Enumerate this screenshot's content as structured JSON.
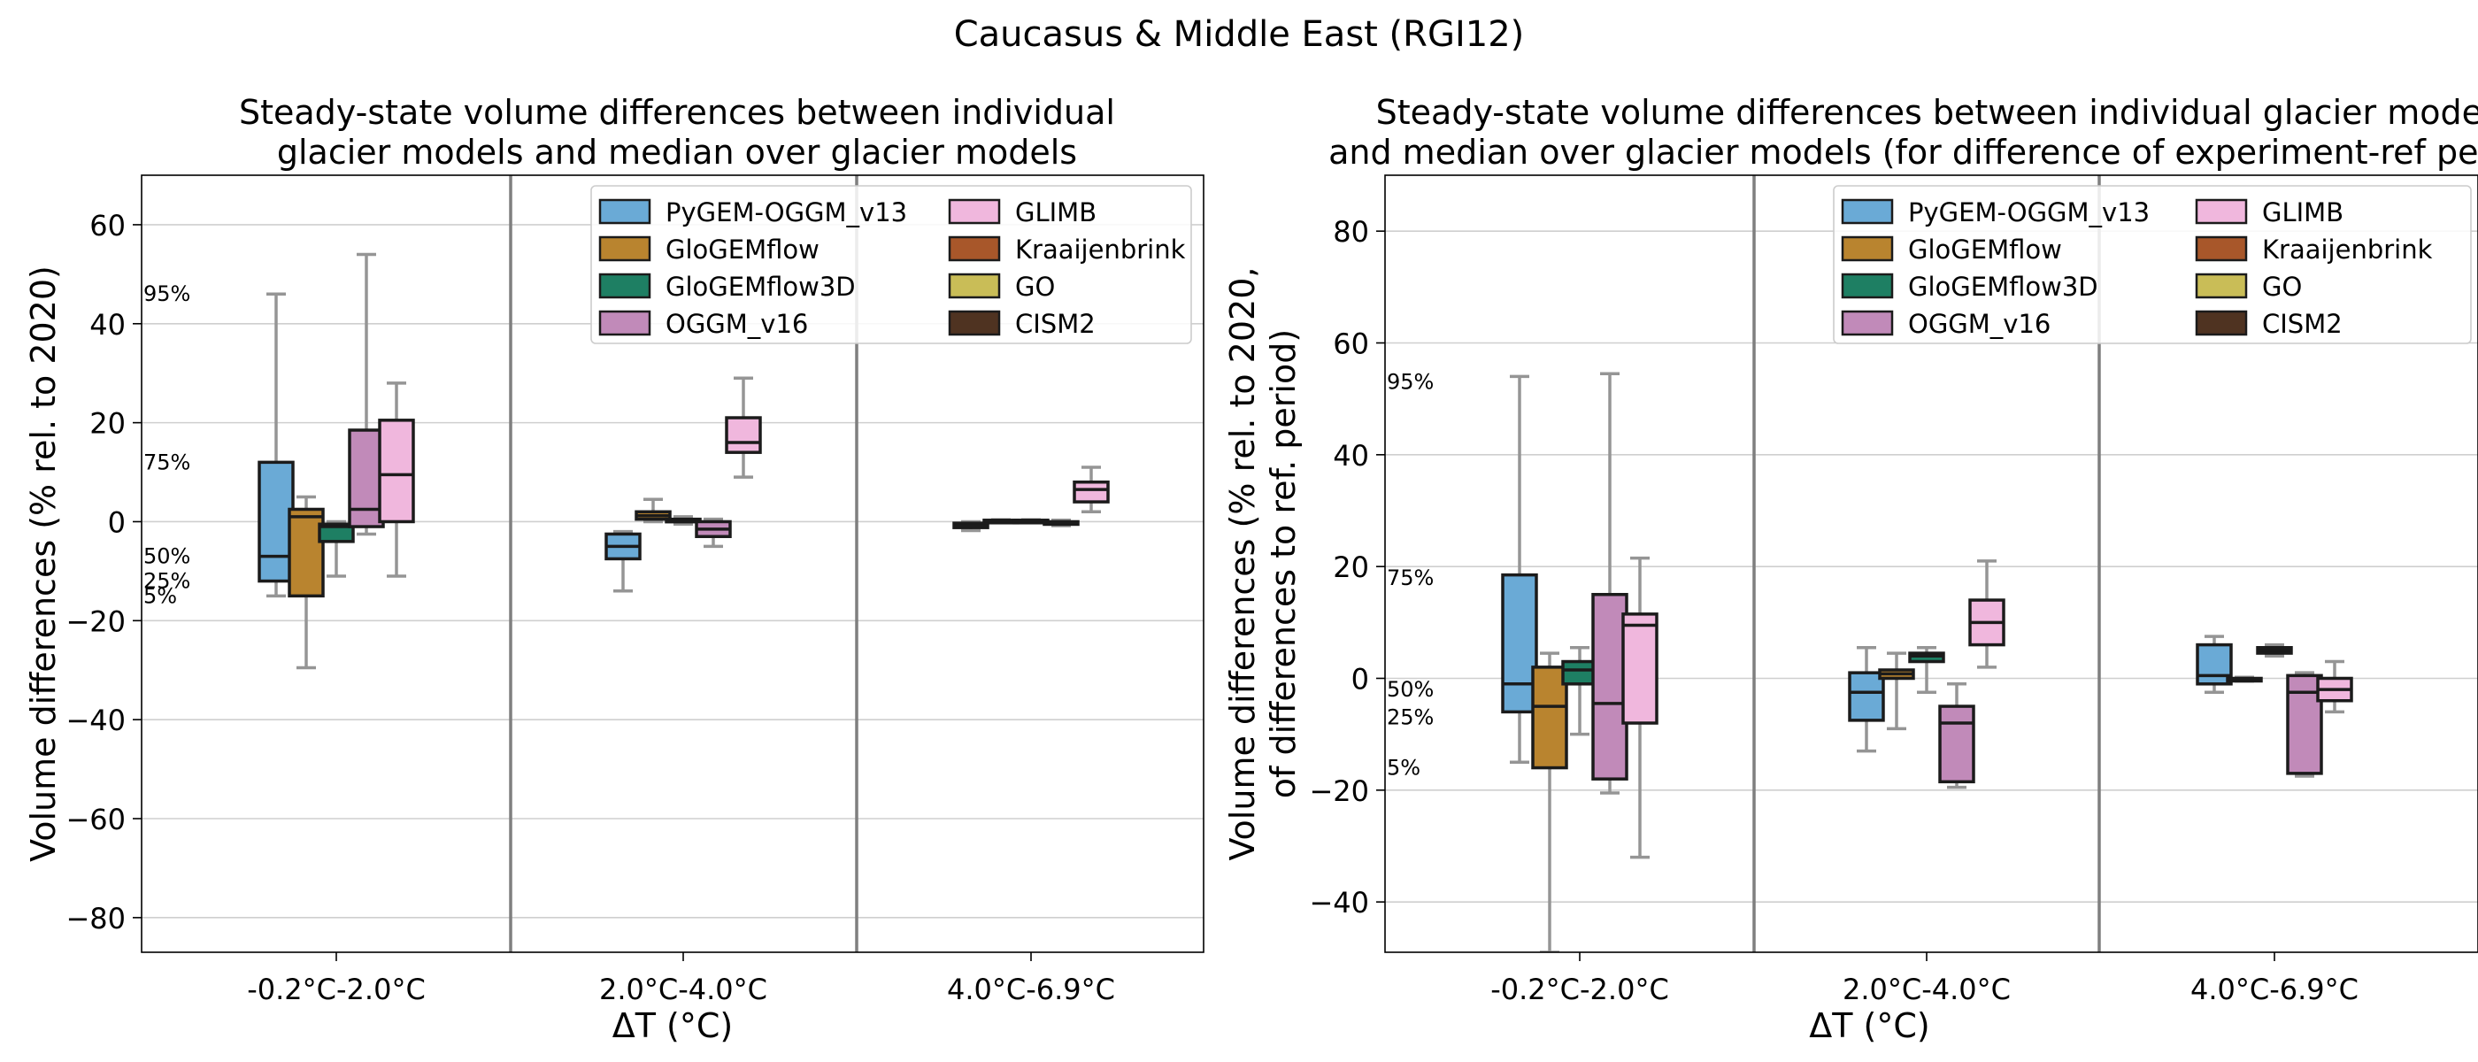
{
  "figure_title": "Caucasus & Middle East (RGI12)",
  "colors": {
    "PyGEM-OGGM_v13": "#6aaad6",
    "GloGEMflow": "#b9842f",
    "GloGEMflow3D": "#1e7f63",
    "OGGM_v16": "#c18ab9",
    "GLIMB": "#f0b7dd",
    "Kraaijenbrink": "#a8572a",
    "GO": "#c9bd57",
    "CISM2": "#4f3321"
  },
  "chart_data": [
    {
      "type": "box",
      "title": [
        "Steady-state volume differences between individual",
        "glacier models and median over glacier models"
      ],
      "xlabel": "ΔT (°C)",
      "ylabel": [
        "Volume differences (% rel. to 2020)"
      ],
      "ylim": [
        -87,
        70
      ],
      "yticks": [
        60,
        40,
        20,
        0,
        -20,
        -40,
        -60,
        -80
      ],
      "grid": true,
      "legend_position": "top-right",
      "legend_columns": 2,
      "legend": [
        "PyGEM-OGGM_v13",
        "GloGEMflow",
        "GloGEMflow3D",
        "OGGM_v16",
        "GLIMB",
        "Kraaijenbrink",
        "GO",
        "CISM2"
      ],
      "groups": [
        "-0.2°C-2.0°C",
        "2.0°C-4.0°C",
        "4.0°C-6.9°C"
      ],
      "percentile_labels": [
        {
          "label": "95%",
          "value": 46
        },
        {
          "label": "75%",
          "value": 12
        },
        {
          "label": "50%",
          "value": -7
        },
        {
          "label": "25%",
          "value": -12
        },
        {
          "label": "5%",
          "value": -15
        }
      ],
      "boxes": [
        {
          "group": 0,
          "model": "PyGEM-OGGM_v13",
          "p5": -15,
          "p25": -12,
          "p50": -7,
          "p75": 12,
          "p95": 46
        },
        {
          "group": 0,
          "model": "GloGEMflow",
          "p5": -29.5,
          "p25": -15,
          "p50": 1,
          "p75": 2.5,
          "p95": 5
        },
        {
          "group": 0,
          "model": "GloGEMflow3D",
          "p5": -11,
          "p25": -4,
          "p50": -1,
          "p75": -0.5,
          "p95": 0
        },
        {
          "group": 0,
          "model": "OGGM_v16",
          "p5": -2.5,
          "p25": -1,
          "p50": 2.5,
          "p75": 18.5,
          "p95": 54
        },
        {
          "group": 0,
          "model": "GLIMB",
          "p5": -11,
          "p25": 0,
          "p50": 9.5,
          "p75": 20.5,
          "p95": 28
        },
        {
          "group": 1,
          "model": "PyGEM-OGGM_v13",
          "p5": -14,
          "p25": -7.5,
          "p50": -5,
          "p75": -2.5,
          "p95": -2
        },
        {
          "group": 1,
          "model": "GloGEMflow",
          "p5": 0,
          "p25": 0.5,
          "p50": 1.2,
          "p75": 2,
          "p95": 4.5
        },
        {
          "group": 1,
          "model": "GloGEMflow3D",
          "p5": -0.5,
          "p25": 0,
          "p50": 0.2,
          "p75": 0.5,
          "p95": 1
        },
        {
          "group": 1,
          "model": "OGGM_v16",
          "p5": -5,
          "p25": -3,
          "p50": -1.5,
          "p75": 0,
          "p95": 0.5
        },
        {
          "group": 1,
          "model": "GLIMB",
          "p5": 9,
          "p25": 14,
          "p50": 16,
          "p75": 21,
          "p95": 29
        },
        {
          "group": 2,
          "model": "PyGEM-OGGM_v13",
          "p5": -1.8,
          "p25": -1.2,
          "p50": -0.8,
          "p75": -0.3,
          "p95": 0
        },
        {
          "group": 2,
          "model": "GloGEMflow",
          "p5": 0,
          "p25": 0.1,
          "p50": 0.2,
          "p75": 0.3,
          "p95": 0.4
        },
        {
          "group": 2,
          "model": "GloGEMflow3D",
          "p5": 0,
          "p25": 0.1,
          "p50": 0.2,
          "p75": 0.3,
          "p95": 0.4
        },
        {
          "group": 2,
          "model": "OGGM_v16",
          "p5": -0.8,
          "p25": -0.5,
          "p50": -0.2,
          "p75": 0,
          "p95": 0.3
        },
        {
          "group": 2,
          "model": "GLIMB",
          "p5": 2,
          "p25": 4,
          "p50": 6.5,
          "p75": 8,
          "p95": 11
        }
      ]
    },
    {
      "type": "box",
      "title": [
        "Steady-state volume differences between individual glacier models",
        "and median over glacier models (for difference of experiment-ref period)"
      ],
      "xlabel": "ΔT (°C)",
      "ylabel": [
        "Volume differences (% rel. to 2020,",
        "of differences to ref. period)"
      ],
      "ylim": [
        -49,
        90
      ],
      "yticks": [
        80,
        60,
        40,
        20,
        0,
        -20,
        -40
      ],
      "grid": true,
      "legend_position": "top-right",
      "legend_columns": 2,
      "legend": [
        "PyGEM-OGGM_v13",
        "GloGEMflow",
        "GloGEMflow3D",
        "OGGM_v16",
        "GLIMB",
        "Kraaijenbrink",
        "GO",
        "CISM2"
      ],
      "groups": [
        "-0.2°C-2.0°C",
        "2.0°C-4.0°C",
        "4.0°C-6.9°C"
      ],
      "percentile_labels": [
        {
          "label": "95%",
          "value": 53
        },
        {
          "label": "75%",
          "value": 18
        },
        {
          "label": "50%",
          "value": -2
        },
        {
          "label": "25%",
          "value": -7
        },
        {
          "label": "5%",
          "value": -16
        }
      ],
      "boxes": [
        {
          "group": 0,
          "model": "PyGEM-OGGM_v13",
          "p5": -15,
          "p25": -6,
          "p50": -1,
          "p75": 18.5,
          "p95": 54
        },
        {
          "group": 0,
          "model": "GloGEMflow",
          "p5": -49,
          "p25": -16,
          "p50": -5,
          "p75": 2,
          "p95": 4.5
        },
        {
          "group": 0,
          "model": "GloGEMflow3D",
          "p5": -10,
          "p25": -1,
          "p50": 1.5,
          "p75": 3,
          "p95": 5.5
        },
        {
          "group": 0,
          "model": "OGGM_v16",
          "p5": -20.5,
          "p25": -18,
          "p50": -4.5,
          "p75": 15,
          "p95": 54.5
        },
        {
          "group": 0,
          "model": "GLIMB",
          "p5": -32,
          "p25": -8,
          "p50": 9.5,
          "p75": 11.5,
          "p95": 21.5
        },
        {
          "group": 1,
          "model": "PyGEM-OGGM_v13",
          "p5": -13,
          "p25": -7.5,
          "p50": -2.5,
          "p75": 1,
          "p95": 5.5
        },
        {
          "group": 1,
          "model": "GloGEMflow",
          "p5": -9,
          "p25": 0,
          "p50": 0.8,
          "p75": 1.5,
          "p95": 4.5
        },
        {
          "group": 1,
          "model": "GloGEMflow3D",
          "p5": -2.5,
          "p25": 3,
          "p50": 4,
          "p75": 4.5,
          "p95": 5.5
        },
        {
          "group": 1,
          "model": "OGGM_v16",
          "p5": -19.5,
          "p25": -18.5,
          "p50": -8,
          "p75": -5,
          "p95": -1
        },
        {
          "group": 1,
          "model": "GLIMB",
          "p5": 2,
          "p25": 6,
          "p50": 10,
          "p75": 14,
          "p95": 21
        },
        {
          "group": 2,
          "model": "PyGEM-OGGM_v13",
          "p5": -2.5,
          "p25": -1,
          "p50": 0.5,
          "p75": 6,
          "p95": 7.5
        },
        {
          "group": 2,
          "model": "GloGEMflow",
          "p5": -0.5,
          "p25": -0.3,
          "p50": -0.1,
          "p75": 0,
          "p95": 0.2
        },
        {
          "group": 2,
          "model": "GloGEMflow3D",
          "p5": 4,
          "p25": 4.5,
          "p50": 5,
          "p75": 5.5,
          "p95": 6
        },
        {
          "group": 2,
          "model": "OGGM_v16",
          "p5": -17.5,
          "p25": -17,
          "p50": -2.5,
          "p75": 0.5,
          "p95": 1
        },
        {
          "group": 2,
          "model": "GLIMB",
          "p5": -6,
          "p25": -4,
          "p50": -2,
          "p75": 0,
          "p95": 3
        }
      ]
    }
  ]
}
